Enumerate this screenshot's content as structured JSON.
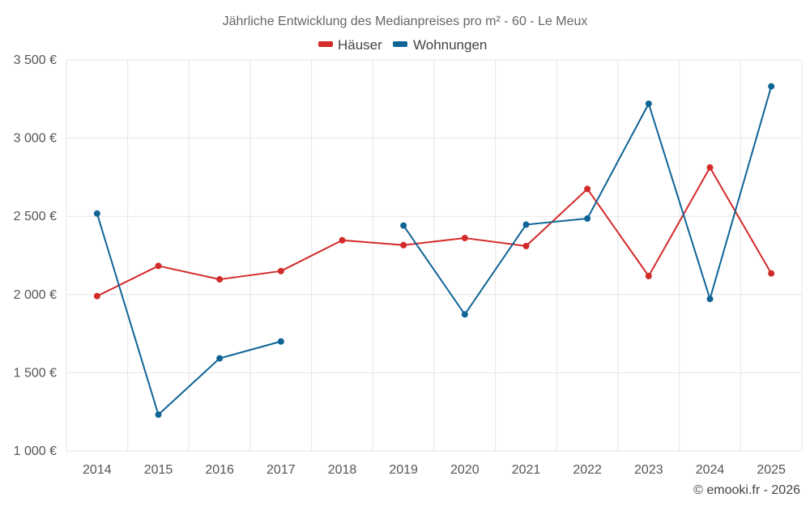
{
  "chart_data": {
    "type": "line",
    "title": "Jährliche Entwicklung des Medianpreises pro m² - 60 - Le Meux",
    "categories": [
      "2014",
      "2015",
      "2016",
      "2017",
      "2018",
      "2019",
      "2020",
      "2021",
      "2022",
      "2023",
      "2024",
      "2025"
    ],
    "y_ticks": [
      1000,
      1500,
      2000,
      2500,
      3000,
      3500
    ],
    "y_tick_labels": [
      "1 000 €",
      "1 500 €",
      "2 000 €",
      "2 500 €",
      "3 000 €",
      "3 500 €"
    ],
    "ylim": [
      1000,
      3500
    ],
    "grid": true,
    "legend_position": "top-center",
    "series": [
      {
        "name": "Häuser",
        "color": "#d32a2a",
        "values": [
          1990,
          2183,
          2097,
          2150,
          2347,
          2316,
          2361,
          2310,
          2675,
          2118,
          2812,
          2135
        ]
      },
      {
        "name": "Wohnungen",
        "color": "#0f6496",
        "values": [
          2518,
          1232,
          1592,
          1700,
          null,
          2441,
          1873,
          2447,
          2486,
          3220,
          1972,
          3331
        ]
      }
    ],
    "credit": "© emooki.fr - 2026"
  }
}
